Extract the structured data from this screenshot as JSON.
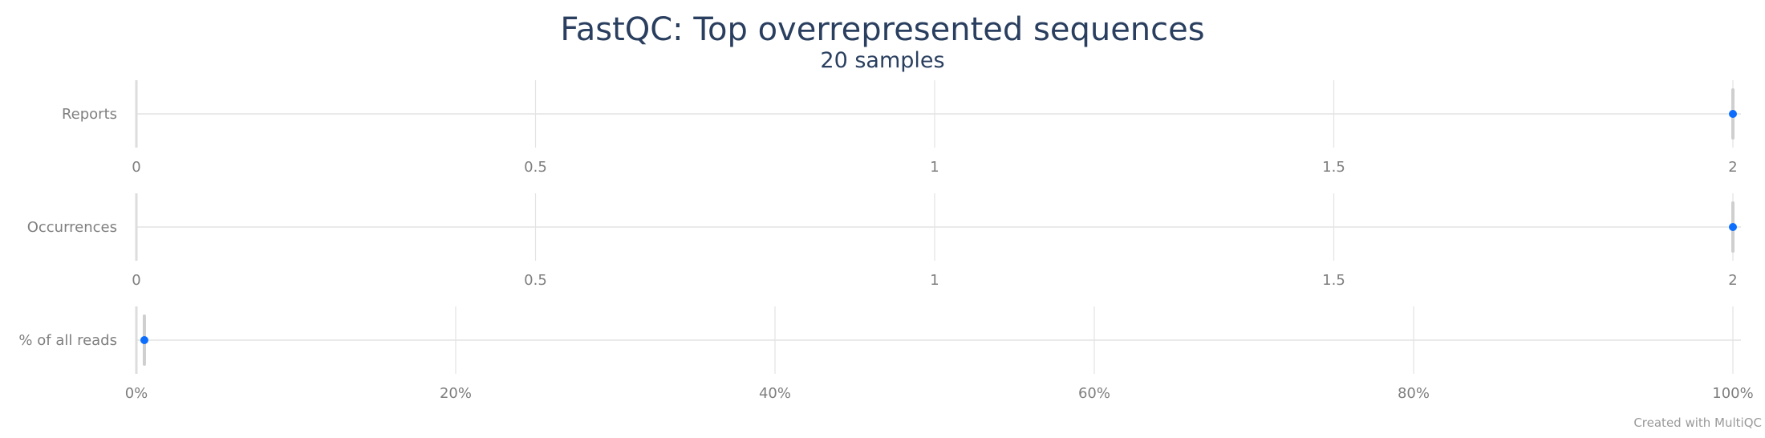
{
  "chart_data": {
    "type": "scatter",
    "title": "FastQC: Top overrepresented sequences",
    "subtitle": "20 samples",
    "credit": "Created with MultiQC",
    "point_color": "#0d6efd",
    "rows": [
      {
        "label": "Reports",
        "xlim": [
          0,
          2
        ],
        "ticks": [
          0,
          0.5,
          1,
          1.5,
          2
        ],
        "tick_labels": [
          "0",
          "0.5",
          "1",
          "1.5",
          "2"
        ],
        "value": 2,
        "min": 0,
        "max": 2
      },
      {
        "label": "Occurrences",
        "xlim": [
          0,
          2
        ],
        "ticks": [
          0,
          0.5,
          1,
          1.5,
          2
        ],
        "tick_labels": [
          "0",
          "0.5",
          "1",
          "1.5",
          "2"
        ],
        "value": 2,
        "min": 0,
        "max": 2
      },
      {
        "label": "% of all reads",
        "xlim": [
          0,
          100
        ],
        "ticks": [
          0,
          20,
          40,
          60,
          80,
          100
        ],
        "tick_labels": [
          "0%",
          "20%",
          "40%",
          "60%",
          "80%",
          "100%"
        ],
        "value": 0.5,
        "min": 0,
        "max": 0.5
      }
    ]
  }
}
